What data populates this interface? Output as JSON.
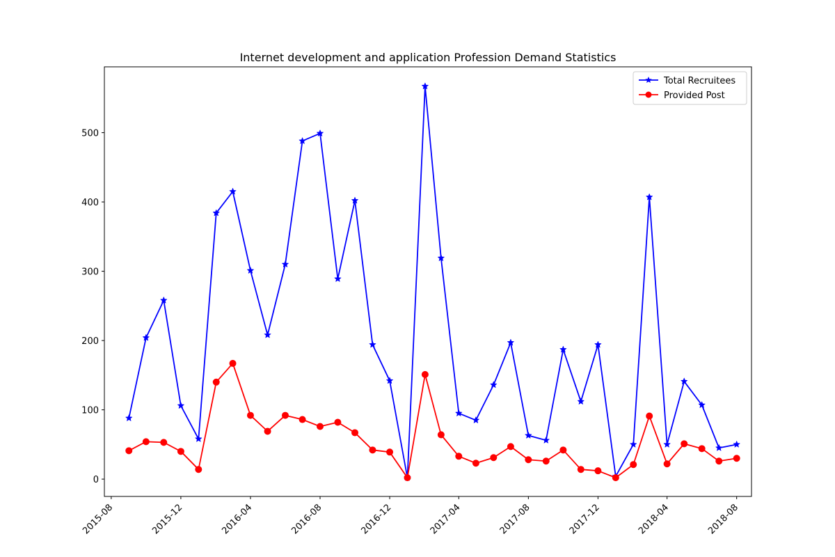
{
  "chart_data": {
    "type": "line",
    "title": "Internet development and application Profession Demand Statistics",
    "xlabel": "",
    "ylabel": "",
    "x": [
      "2015-09",
      "2015-10",
      "2015-11",
      "2015-12",
      "2016-01",
      "2016-02",
      "2016-03",
      "2016-04",
      "2016-05",
      "2016-06",
      "2016-07",
      "2016-08",
      "2016-09",
      "2016-10",
      "2016-11",
      "2016-12",
      "2017-01",
      "2017-02",
      "2017-03",
      "2017-04",
      "2017-05",
      "2017-06",
      "2017-07",
      "2017-08",
      "2017-09",
      "2017-10",
      "2017-11",
      "2017-12",
      "2018-01",
      "2018-02",
      "2018-03",
      "2018-04",
      "2018-05",
      "2018-06",
      "2018-07",
      "2018-08"
    ],
    "series": [
      {
        "name": "Total Recruitees",
        "color": "#0000ff",
        "marker": "star",
        "values": [
          88,
          204,
          258,
          106,
          58,
          384,
          415,
          301,
          208,
          310,
          488,
          499,
          289,
          402,
          194,
          142,
          2,
          567,
          319,
          95,
          85,
          136,
          197,
          63,
          56,
          187,
          112,
          194,
          4,
          50,
          407,
          50,
          141,
          107,
          45,
          50
        ]
      },
      {
        "name": "Provided Post",
        "color": "#ff0000",
        "marker": "circle",
        "values": [
          41,
          54,
          53,
          40,
          14,
          140,
          167,
          92,
          69,
          92,
          86,
          76,
          82,
          67,
          42,
          39,
          2,
          151,
          64,
          33,
          23,
          31,
          47,
          28,
          26,
          42,
          14,
          12,
          2,
          21,
          91,
          22,
          51,
          44,
          26,
          30
        ]
      }
    ],
    "xticks": [
      "2015-08",
      "2015-12",
      "2016-04",
      "2016-08",
      "2016-12",
      "2017-04",
      "2017-08",
      "2017-12",
      "2018-04",
      "2018-08"
    ],
    "yticks": [
      0,
      100,
      200,
      300,
      400,
      500
    ],
    "ylim": [
      -25,
      595
    ],
    "xlim": [
      "2015-07-20",
      "2018-08-27"
    ],
    "grid": false,
    "legend_position": "top-right"
  }
}
